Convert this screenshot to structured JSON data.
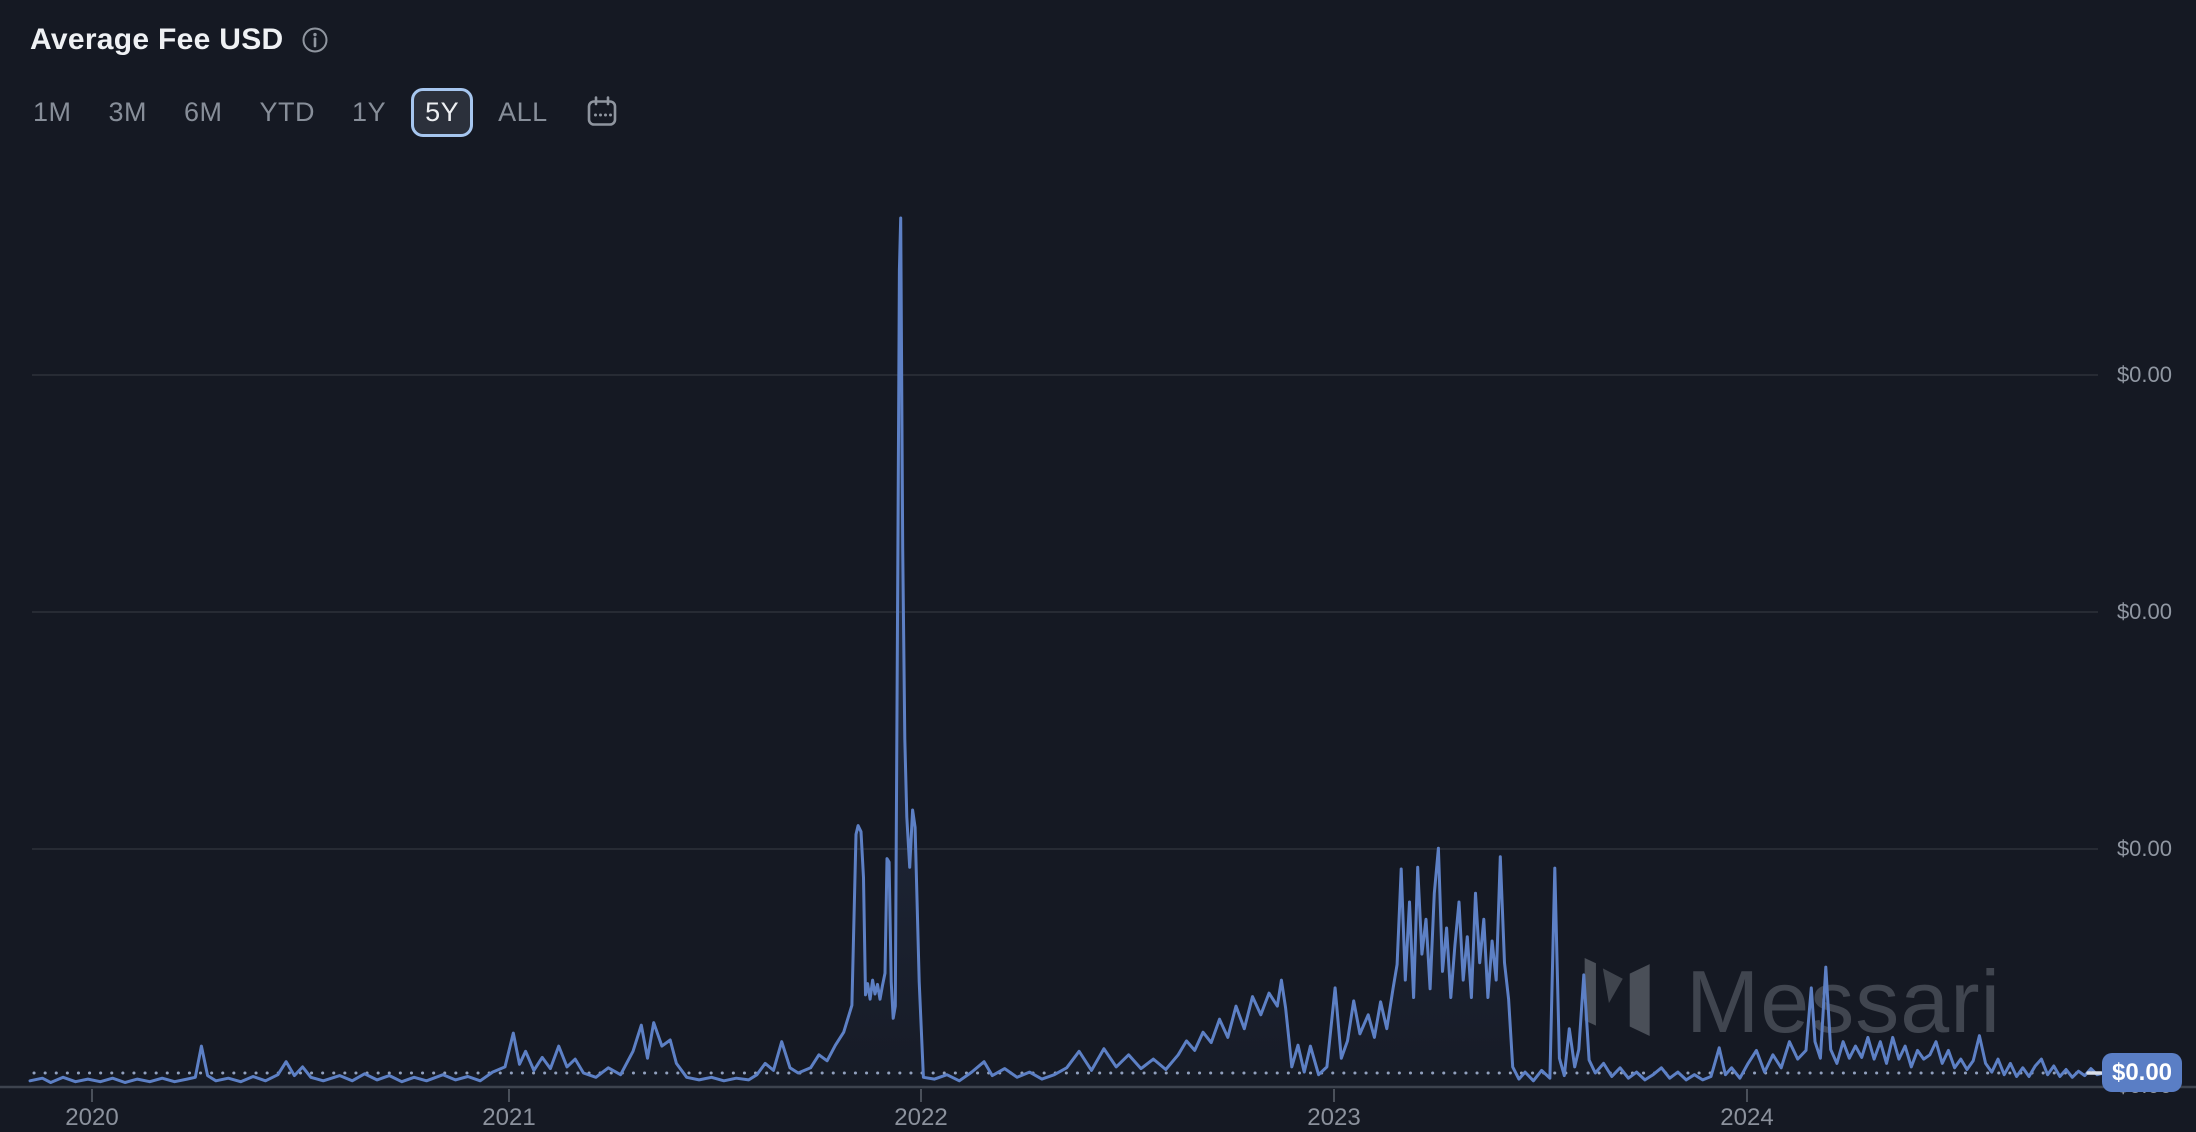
{
  "header": {
    "title": "Average Fee USD"
  },
  "range_selector": {
    "options": [
      {
        "label": "1M",
        "selected": false
      },
      {
        "label": "3M",
        "selected": false
      },
      {
        "label": "6M",
        "selected": false
      },
      {
        "label": "YTD",
        "selected": false
      },
      {
        "label": "1Y",
        "selected": false
      },
      {
        "label": "5Y",
        "selected": true
      },
      {
        "label": "ALL",
        "selected": false
      }
    ],
    "calendar_icon": "calendar-icon"
  },
  "watermark": {
    "brand": "Messari"
  },
  "theme": {
    "background": "#151923",
    "line_color": "#5d80c5",
    "badge_color": "#5a7ec5",
    "selected_border_color": "#a6c6ef",
    "axis_text_color": "#9097a2",
    "watermark_color": "#40454f"
  },
  "chart_data": {
    "type": "line",
    "title": "Average Fee USD",
    "series_name": "Average Fee USD",
    "x_ticks": [
      "2020",
      "2021",
      "2022",
      "2023",
      "2024"
    ],
    "y_tick_labels": [
      "$0.00",
      "$0.00",
      "$0.00",
      "$0.00"
    ],
    "latest_value_label": "$0.00",
    "xlabel": "",
    "ylabel": "",
    "grid": true,
    "legend_position": "none",
    "x_range_years": [
      2019.85,
      2024.87
    ],
    "y_unit": "relative (1.0 = late-2021 peak spike; axis labels all render $0.00)",
    "points": [
      [
        2019.85,
        0.006
      ],
      [
        2019.88,
        0.009
      ],
      [
        2019.9,
        0.004
      ],
      [
        2019.93,
        0.01
      ],
      [
        2019.96,
        0.005
      ],
      [
        2019.99,
        0.008
      ],
      [
        2020.02,
        0.005
      ],
      [
        2020.05,
        0.009
      ],
      [
        2020.08,
        0.004
      ],
      [
        2020.11,
        0.008
      ],
      [
        2020.14,
        0.005
      ],
      [
        2020.17,
        0.009
      ],
      [
        2020.2,
        0.005
      ],
      [
        2020.23,
        0.008
      ],
      [
        2020.25,
        0.01
      ],
      [
        2020.265,
        0.046
      ],
      [
        2020.28,
        0.012
      ],
      [
        2020.3,
        0.006
      ],
      [
        2020.33,
        0.009
      ],
      [
        2020.36,
        0.005
      ],
      [
        2020.39,
        0.011
      ],
      [
        2020.42,
        0.006
      ],
      [
        2020.45,
        0.013
      ],
      [
        2020.47,
        0.028
      ],
      [
        2020.49,
        0.012
      ],
      [
        2020.51,
        0.022
      ],
      [
        2020.53,
        0.01
      ],
      [
        2020.56,
        0.006
      ],
      [
        2020.6,
        0.012
      ],
      [
        2020.63,
        0.006
      ],
      [
        2020.66,
        0.014
      ],
      [
        2020.69,
        0.007
      ],
      [
        2020.72,
        0.012
      ],
      [
        2020.75,
        0.005
      ],
      [
        2020.78,
        0.01
      ],
      [
        2020.81,
        0.006
      ],
      [
        2020.85,
        0.013
      ],
      [
        2020.88,
        0.007
      ],
      [
        2020.91,
        0.011
      ],
      [
        2020.94,
        0.006
      ],
      [
        2020.97,
        0.016
      ],
      [
        2021.0,
        0.022
      ],
      [
        2021.02,
        0.061
      ],
      [
        2021.035,
        0.025
      ],
      [
        2021.05,
        0.04
      ],
      [
        2021.07,
        0.018
      ],
      [
        2021.09,
        0.033
      ],
      [
        2021.11,
        0.02
      ],
      [
        2021.13,
        0.046
      ],
      [
        2021.15,
        0.022
      ],
      [
        2021.17,
        0.031
      ],
      [
        2021.19,
        0.015
      ],
      [
        2021.22,
        0.01
      ],
      [
        2021.25,
        0.021
      ],
      [
        2021.28,
        0.013
      ],
      [
        2021.31,
        0.04
      ],
      [
        2021.33,
        0.07
      ],
      [
        2021.345,
        0.032
      ],
      [
        2021.36,
        0.073
      ],
      [
        2021.38,
        0.046
      ],
      [
        2021.4,
        0.053
      ],
      [
        2021.415,
        0.026
      ],
      [
        2021.44,
        0.01
      ],
      [
        2021.47,
        0.007
      ],
      [
        2021.5,
        0.01
      ],
      [
        2021.53,
        0.006
      ],
      [
        2021.56,
        0.009
      ],
      [
        2021.59,
        0.007
      ],
      [
        2021.61,
        0.013
      ],
      [
        2021.63,
        0.026
      ],
      [
        2021.65,
        0.018
      ],
      [
        2021.67,
        0.051
      ],
      [
        2021.69,
        0.021
      ],
      [
        2021.71,
        0.015
      ],
      [
        2021.74,
        0.021
      ],
      [
        2021.76,
        0.036
      ],
      [
        2021.78,
        0.029
      ],
      [
        2021.8,
        0.047
      ],
      [
        2021.82,
        0.062
      ],
      [
        2021.84,
        0.093
      ],
      [
        2021.85,
        0.29
      ],
      [
        2021.855,
        0.3
      ],
      [
        2021.862,
        0.293
      ],
      [
        2021.868,
        0.24
      ],
      [
        2021.873,
        0.105
      ],
      [
        2021.878,
        0.118
      ],
      [
        2021.884,
        0.1
      ],
      [
        2021.89,
        0.122
      ],
      [
        2021.896,
        0.106
      ],
      [
        2021.902,
        0.117
      ],
      [
        2021.908,
        0.1
      ],
      [
        2021.914,
        0.116
      ],
      [
        2021.92,
        0.13
      ],
      [
        2021.925,
        0.262
      ],
      [
        2021.93,
        0.258
      ],
      [
        2021.935,
        0.12
      ],
      [
        2021.94,
        0.078
      ],
      [
        2021.945,
        0.092
      ],
      [
        2021.95,
        0.514
      ],
      [
        2021.955,
        0.94
      ],
      [
        2021.958,
        1.0
      ],
      [
        2021.963,
        0.62
      ],
      [
        2021.968,
        0.4
      ],
      [
        2021.973,
        0.31
      ],
      [
        2021.98,
        0.252
      ],
      [
        2021.987,
        0.318
      ],
      [
        2021.993,
        0.298
      ],
      [
        2022.003,
        0.12
      ],
      [
        2022.013,
        0.01
      ],
      [
        2022.04,
        0.008
      ],
      [
        2022.07,
        0.013
      ],
      [
        2022.1,
        0.006
      ],
      [
        2022.13,
        0.016
      ],
      [
        2022.16,
        0.028
      ],
      [
        2022.18,
        0.012
      ],
      [
        2022.21,
        0.02
      ],
      [
        2022.24,
        0.01
      ],
      [
        2022.27,
        0.016
      ],
      [
        2022.3,
        0.008
      ],
      [
        2022.33,
        0.013
      ],
      [
        2022.36,
        0.021
      ],
      [
        2022.39,
        0.04
      ],
      [
        2022.42,
        0.018
      ],
      [
        2022.45,
        0.043
      ],
      [
        2022.48,
        0.022
      ],
      [
        2022.51,
        0.036
      ],
      [
        2022.54,
        0.02
      ],
      [
        2022.57,
        0.031
      ],
      [
        2022.6,
        0.019
      ],
      [
        2022.63,
        0.036
      ],
      [
        2022.65,
        0.052
      ],
      [
        2022.67,
        0.041
      ],
      [
        2022.69,
        0.062
      ],
      [
        2022.71,
        0.05
      ],
      [
        2022.73,
        0.077
      ],
      [
        2022.75,
        0.056
      ],
      [
        2022.77,
        0.092
      ],
      [
        2022.79,
        0.066
      ],
      [
        2022.81,
        0.103
      ],
      [
        2022.83,
        0.082
      ],
      [
        2022.85,
        0.107
      ],
      [
        2022.87,
        0.092
      ],
      [
        2022.88,
        0.122
      ],
      [
        2022.89,
        0.09
      ],
      [
        2022.905,
        0.022
      ],
      [
        2022.92,
        0.047
      ],
      [
        2022.935,
        0.016
      ],
      [
        2022.95,
        0.046
      ],
      [
        2022.97,
        0.013
      ],
      [
        2022.99,
        0.022
      ],
      [
        2023.01,
        0.113
      ],
      [
        2023.025,
        0.032
      ],
      [
        2023.04,
        0.052
      ],
      [
        2023.055,
        0.098
      ],
      [
        2023.07,
        0.06
      ],
      [
        2023.09,
        0.082
      ],
      [
        2023.105,
        0.056
      ],
      [
        2023.12,
        0.097
      ],
      [
        2023.135,
        0.066
      ],
      [
        2023.15,
        0.112
      ],
      [
        2023.16,
        0.14
      ],
      [
        2023.17,
        0.25
      ],
      [
        2023.18,
        0.122
      ],
      [
        2023.19,
        0.212
      ],
      [
        2023.2,
        0.102
      ],
      [
        2023.21,
        0.252
      ],
      [
        2023.22,
        0.152
      ],
      [
        2023.23,
        0.192
      ],
      [
        2023.24,
        0.112
      ],
      [
        2023.25,
        0.222
      ],
      [
        2023.26,
        0.274
      ],
      [
        2023.27,
        0.132
      ],
      [
        2023.28,
        0.182
      ],
      [
        2023.29,
        0.102
      ],
      [
        2023.3,
        0.162
      ],
      [
        2023.31,
        0.212
      ],
      [
        2023.32,
        0.122
      ],
      [
        2023.33,
        0.172
      ],
      [
        2023.34,
        0.102
      ],
      [
        2023.35,
        0.222
      ],
      [
        2023.36,
        0.142
      ],
      [
        2023.37,
        0.192
      ],
      [
        2023.38,
        0.102
      ],
      [
        2023.39,
        0.167
      ],
      [
        2023.4,
        0.122
      ],
      [
        2023.41,
        0.264
      ],
      [
        2023.42,
        0.142
      ],
      [
        2023.43,
        0.1
      ],
      [
        2023.44,
        0.022
      ],
      [
        2023.455,
        0.008
      ],
      [
        2023.47,
        0.016
      ],
      [
        2023.49,
        0.006
      ],
      [
        2023.51,
        0.018
      ],
      [
        2023.53,
        0.009
      ],
      [
        2023.542,
        0.251
      ],
      [
        2023.553,
        0.032
      ],
      [
        2023.565,
        0.012
      ],
      [
        2023.577,
        0.066
      ],
      [
        2023.59,
        0.022
      ],
      [
        2023.6,
        0.042
      ],
      [
        2023.612,
        0.128
      ],
      [
        2023.625,
        0.03
      ],
      [
        2023.64,
        0.015
      ],
      [
        2023.66,
        0.026
      ],
      [
        2023.68,
        0.011
      ],
      [
        2023.7,
        0.021
      ],
      [
        2023.72,
        0.009
      ],
      [
        2023.74,
        0.016
      ],
      [
        2023.76,
        0.007
      ],
      [
        2023.78,
        0.013
      ],
      [
        2023.8,
        0.021
      ],
      [
        2023.82,
        0.009
      ],
      [
        2023.84,
        0.016
      ],
      [
        2023.86,
        0.007
      ],
      [
        2023.88,
        0.013
      ],
      [
        2023.9,
        0.007
      ],
      [
        2023.92,
        0.011
      ],
      [
        2023.94,
        0.044
      ],
      [
        2023.955,
        0.013
      ],
      [
        2023.97,
        0.021
      ],
      [
        2023.99,
        0.009
      ],
      [
        2024.01,
        0.026
      ],
      [
        2024.03,
        0.041
      ],
      [
        2024.05,
        0.016
      ],
      [
        2024.07,
        0.036
      ],
      [
        2024.09,
        0.021
      ],
      [
        2024.11,
        0.051
      ],
      [
        2024.13,
        0.031
      ],
      [
        2024.15,
        0.041
      ],
      [
        2024.163,
        0.113
      ],
      [
        2024.172,
        0.051
      ],
      [
        2024.185,
        0.032
      ],
      [
        2024.198,
        0.137
      ],
      [
        2024.21,
        0.042
      ],
      [
        2024.225,
        0.026
      ],
      [
        2024.24,
        0.051
      ],
      [
        2024.255,
        0.032
      ],
      [
        2024.27,
        0.046
      ],
      [
        2024.285,
        0.033
      ],
      [
        2024.3,
        0.056
      ],
      [
        2024.315,
        0.031
      ],
      [
        2024.33,
        0.051
      ],
      [
        2024.345,
        0.026
      ],
      [
        2024.36,
        0.056
      ],
      [
        2024.375,
        0.031
      ],
      [
        2024.39,
        0.046
      ],
      [
        2024.405,
        0.022
      ],
      [
        2024.42,
        0.041
      ],
      [
        2024.435,
        0.031
      ],
      [
        2024.45,
        0.036
      ],
      [
        2024.465,
        0.051
      ],
      [
        2024.48,
        0.026
      ],
      [
        2024.495,
        0.041
      ],
      [
        2024.51,
        0.021
      ],
      [
        2024.525,
        0.031
      ],
      [
        2024.54,
        0.019
      ],
      [
        2024.555,
        0.029
      ],
      [
        2024.57,
        0.058
      ],
      [
        2024.585,
        0.026
      ],
      [
        2024.6,
        0.016
      ],
      [
        2024.615,
        0.031
      ],
      [
        2024.63,
        0.013
      ],
      [
        2024.645,
        0.026
      ],
      [
        2024.66,
        0.011
      ],
      [
        2024.675,
        0.021
      ],
      [
        2024.69,
        0.011
      ],
      [
        2024.705,
        0.023
      ],
      [
        2024.72,
        0.031
      ],
      [
        2024.735,
        0.013
      ],
      [
        2024.75,
        0.023
      ],
      [
        2024.765,
        0.011
      ],
      [
        2024.78,
        0.019
      ],
      [
        2024.795,
        0.01
      ],
      [
        2024.81,
        0.017
      ],
      [
        2024.825,
        0.012
      ],
      [
        2024.84,
        0.02
      ],
      [
        2024.855,
        0.013
      ],
      [
        2024.87,
        0.015
      ]
    ]
  }
}
